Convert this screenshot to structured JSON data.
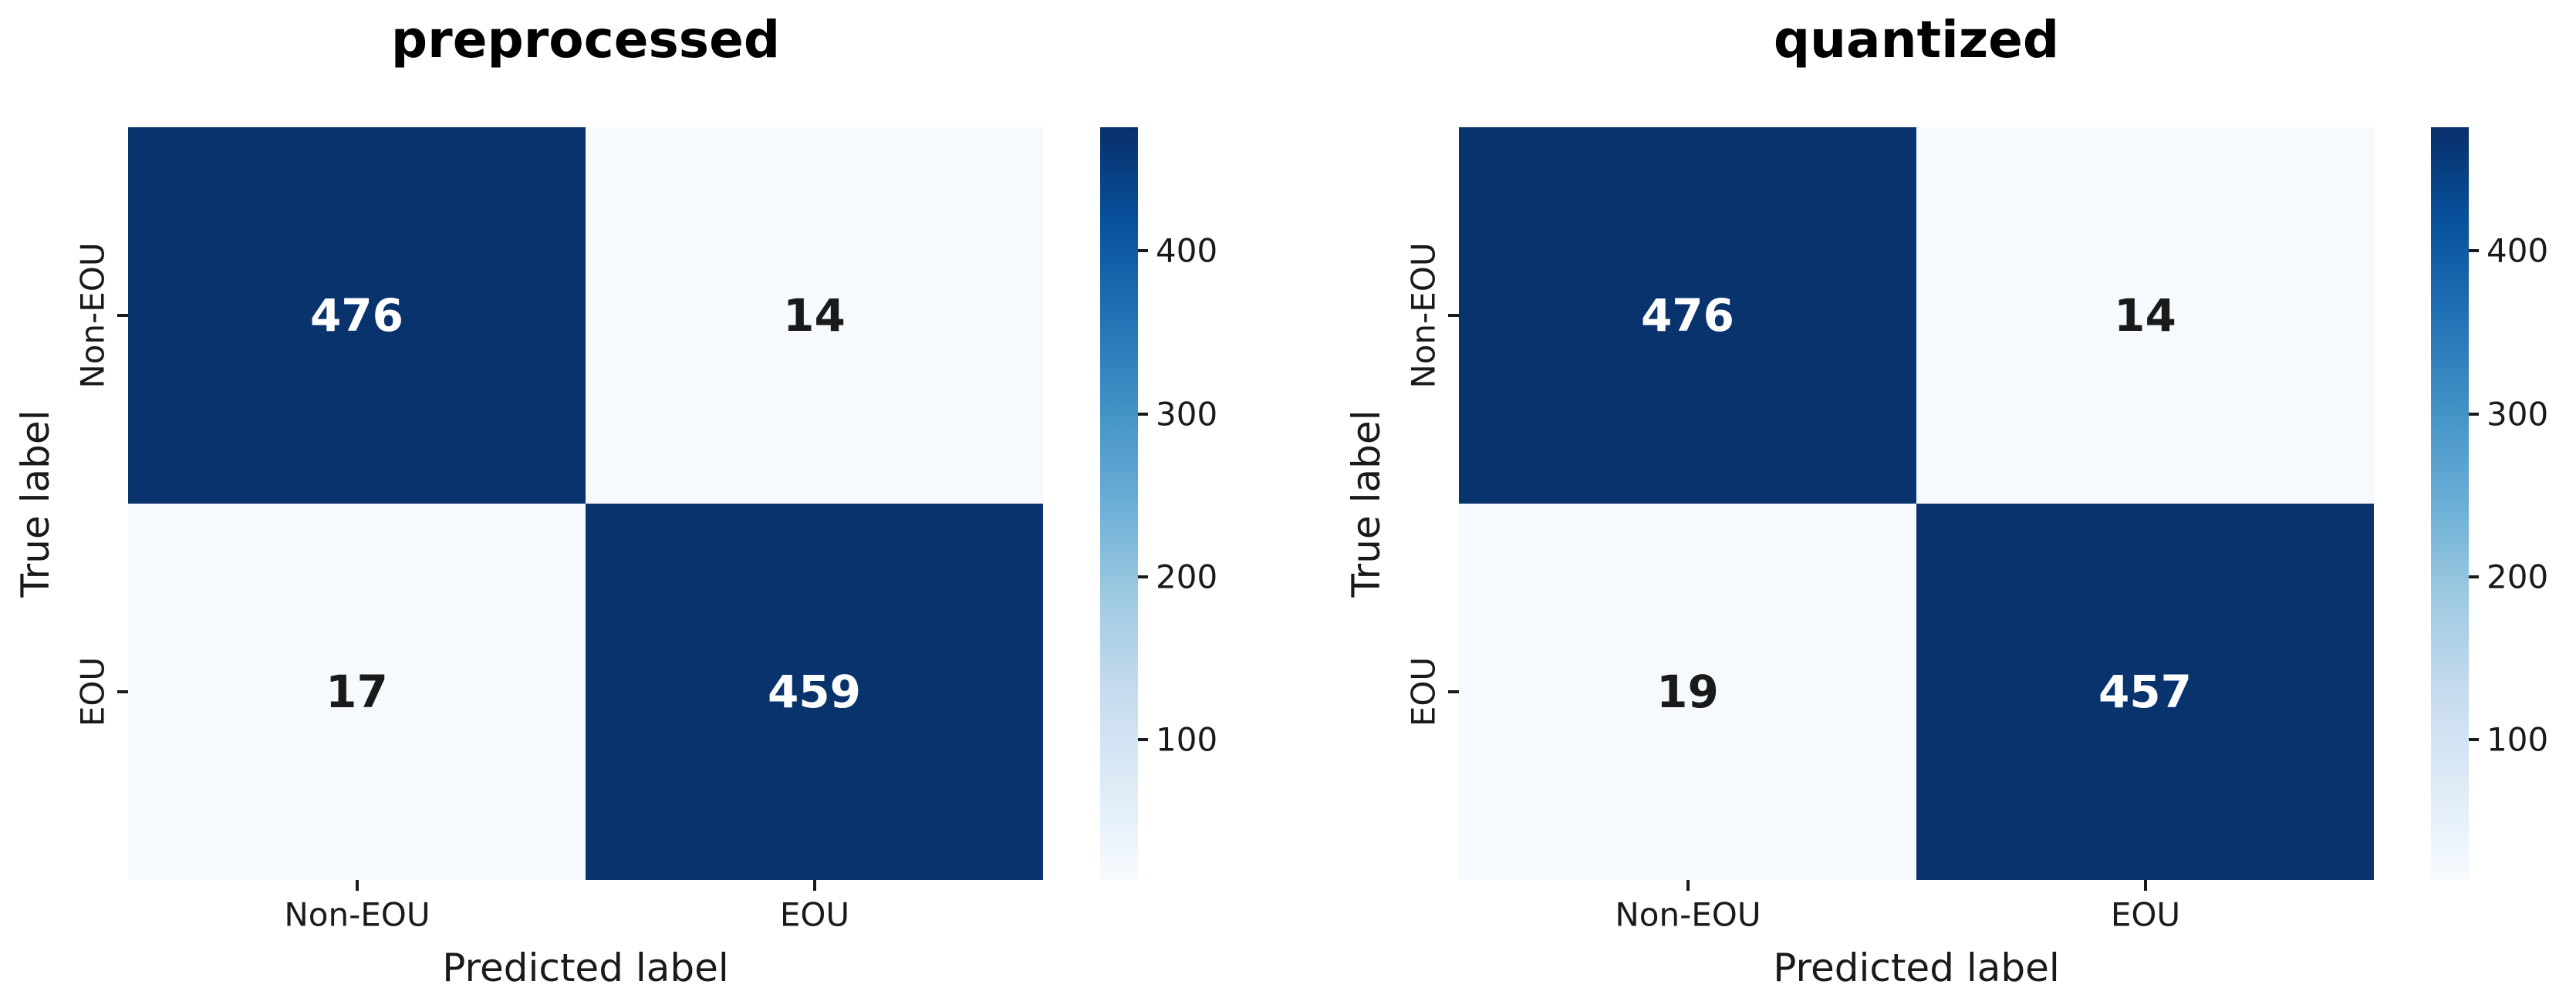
{
  "colors": {
    "background": "#ffffff",
    "cell_high": "#09336d",
    "cell_low": "#f6fafe",
    "annot_on_high": "#ffffff",
    "annot_on_low": "#1a1a1a",
    "axis_text": "#1a1a1a",
    "colorbar_gradient": [
      "#f7fbff",
      "#deebf7",
      "#c6dbef",
      "#9ecae1",
      "#6baed6",
      "#4292c6",
      "#2171b5",
      "#08519c",
      "#08306b"
    ]
  },
  "chart_data": [
    {
      "type": "heatmap",
      "title": "preprocessed",
      "xlabel": "Predicted label",
      "ylabel": "True label",
      "x_categories": [
        "Non-EOU",
        "EOU"
      ],
      "y_categories": [
        "Non-EOU",
        "EOU"
      ],
      "values": [
        [
          476,
          14
        ],
        [
          17,
          459
        ]
      ],
      "vmin": 14,
      "vmax": 476,
      "colormap": "Blues",
      "grid": "off",
      "legend_position": "right-colorbar",
      "colorbar_ticks_top_to_bottom": [
        400,
        300,
        200,
        100
      ]
    },
    {
      "type": "heatmap",
      "title": "quantized",
      "xlabel": "Predicted label",
      "ylabel": "True label",
      "x_categories": [
        "Non-EOU",
        "EOU"
      ],
      "y_categories": [
        "Non-EOU",
        "EOU"
      ],
      "values": [
        [
          476,
          14
        ],
        [
          19,
          457
        ]
      ],
      "vmin": 14,
      "vmax": 476,
      "colormap": "Blues",
      "grid": "off",
      "legend_position": "right-colorbar",
      "colorbar_ticks_top_to_bottom": [
        400,
        300,
        200,
        100
      ]
    }
  ]
}
